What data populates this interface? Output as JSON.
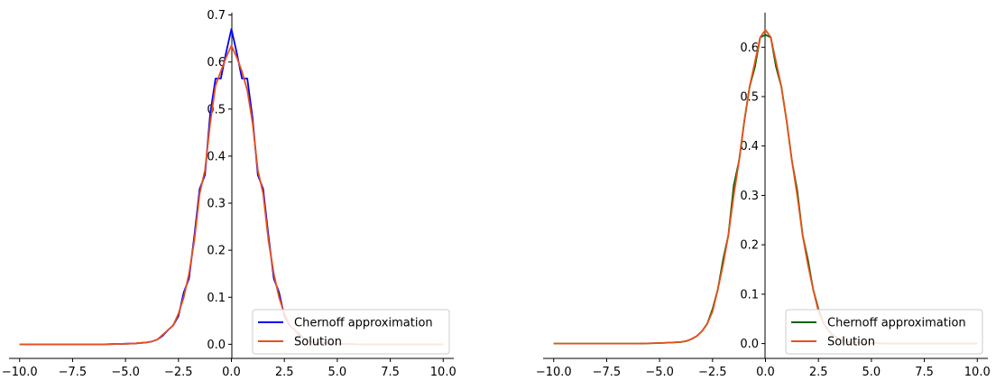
{
  "chart_data": [
    {
      "type": "line",
      "xlim": [
        -10.5,
        10.5
      ],
      "ylim": [
        -0.03,
        0.705
      ],
      "x_ticks": [
        -10,
        -7.5,
        -5,
        -2.5,
        0,
        2.5,
        5,
        7.5,
        10
      ],
      "x_tick_labels": [
        "−10.0",
        "−7.5",
        "−5.0",
        "−2.5",
        "0.0",
        "2.5",
        "5.0",
        "7.5",
        "10.0"
      ],
      "y_ticks": [
        0,
        0.1,
        0.2,
        0.3,
        0.4,
        0.5,
        0.6,
        0.7
      ],
      "y_tick_labels": [
        "0.0",
        "0.1",
        "0.2",
        "0.3",
        "0.4",
        "0.5",
        "0.6",
        "0.7"
      ],
      "legend_position": "lower-right",
      "grid": false,
      "series": [
        {
          "name": "Chernoff approximation",
          "color": "#0000ff",
          "x": [
            -10,
            -8,
            -6,
            -5,
            -4.5,
            -4,
            -3.75,
            -3.5,
            -3.25,
            -3,
            -2.75,
            -2.5,
            -2.25,
            -2,
            -1.75,
            -1.5,
            -1.25,
            -1,
            -0.75,
            -0.5,
            -0.25,
            0,
            0.25,
            0.5,
            0.75,
            1,
            1.25,
            1.5,
            1.75,
            2,
            2.25,
            2.5,
            2.75,
            3,
            3.25,
            3.5,
            3.75,
            4,
            4.5,
            5,
            6,
            8,
            10
          ],
          "y": [
            0,
            0,
            0,
            0.001,
            0.002,
            0.004,
            0.006,
            0.01,
            0.018,
            0.03,
            0.04,
            0.06,
            0.11,
            0.14,
            0.23,
            0.33,
            0.36,
            0.49,
            0.565,
            0.565,
            0.62,
            0.67,
            0.62,
            0.565,
            0.565,
            0.48,
            0.36,
            0.33,
            0.23,
            0.14,
            0.11,
            0.06,
            0.04,
            0.03,
            0.018,
            0.01,
            0.006,
            0.004,
            0.002,
            0.001,
            0,
            0,
            0
          ]
        },
        {
          "name": "Solution",
          "color": "#e8501a",
          "x": [
            -10,
            -8,
            -6,
            -5,
            -4.5,
            -4,
            -3.75,
            -3.5,
            -3.25,
            -3,
            -2.75,
            -2.5,
            -2.25,
            -2,
            -1.75,
            -1.5,
            -1.25,
            -1,
            -0.75,
            -0.5,
            -0.25,
            0,
            0.25,
            0.5,
            0.75,
            1,
            1.25,
            1.5,
            1.75,
            2,
            2.25,
            2.5,
            2.75,
            3,
            3.25,
            3.5,
            3.75,
            4,
            4.5,
            5,
            6,
            8,
            10
          ],
          "y": [
            0,
            0,
            0,
            0.001,
            0.002,
            0.004,
            0.006,
            0.01,
            0.02,
            0.03,
            0.04,
            0.065,
            0.1,
            0.15,
            0.22,
            0.32,
            0.37,
            0.47,
            0.55,
            0.58,
            0.61,
            0.635,
            0.61,
            0.58,
            0.54,
            0.47,
            0.37,
            0.32,
            0.22,
            0.15,
            0.1,
            0.065,
            0.04,
            0.03,
            0.02,
            0.01,
            0.006,
            0.004,
            0.002,
            0.001,
            0,
            0,
            0
          ]
        }
      ]
    },
    {
      "type": "line",
      "xlim": [
        -10.5,
        10.5
      ],
      "ylim": [
        -0.03,
        0.67
      ],
      "x_ticks": [
        -10,
        -7.5,
        -5,
        -2.5,
        0,
        2.5,
        5,
        7.5,
        10
      ],
      "x_tick_labels": [
        "−10.0",
        "−7.5",
        "−5.0",
        "−2.5",
        "0.0",
        "2.5",
        "5.0",
        "7.5",
        "10.0"
      ],
      "y_ticks": [
        0,
        0.1,
        0.2,
        0.3,
        0.4,
        0.5,
        0.6
      ],
      "y_tick_labels": [
        "0.0",
        "0.1",
        "0.2",
        "0.3",
        "0.4",
        "0.5",
        "0.6"
      ],
      "legend_position": "lower-right",
      "grid": false,
      "series": [
        {
          "name": "Chernoff approximation",
          "color": "#006400",
          "x": [
            -10,
            -8,
            -6,
            -5,
            -4.5,
            -4,
            -3.75,
            -3.5,
            -3.25,
            -3,
            -2.75,
            -2.5,
            -2.25,
            -2,
            -1.75,
            -1.5,
            -1.25,
            -1,
            -0.75,
            -0.5,
            -0.25,
            0,
            0.25,
            0.5,
            0.75,
            1,
            1.25,
            1.5,
            1.75,
            2,
            2.25,
            2.5,
            2.75,
            3,
            3.25,
            3.5,
            3.75,
            4,
            4.5,
            5,
            6,
            8,
            10
          ],
          "y": [
            0,
            0,
            0,
            0.001,
            0.002,
            0.003,
            0.005,
            0.009,
            0.015,
            0.025,
            0.04,
            0.07,
            0.11,
            0.17,
            0.22,
            0.32,
            0.37,
            0.45,
            0.52,
            0.56,
            0.62,
            0.625,
            0.62,
            0.56,
            0.52,
            0.45,
            0.37,
            0.31,
            0.22,
            0.17,
            0.11,
            0.07,
            0.04,
            0.025,
            0.015,
            0.009,
            0.005,
            0.003,
            0.002,
            0.001,
            0,
            0,
            0
          ]
        },
        {
          "name": "Solution",
          "color": "#e8501a",
          "x": [
            -10,
            -8,
            -6,
            -5,
            -4.5,
            -4,
            -3.75,
            -3.5,
            -3.25,
            -3,
            -2.75,
            -2.5,
            -2.25,
            -2,
            -1.75,
            -1.5,
            -1.25,
            -1,
            -0.75,
            -0.5,
            -0.25,
            0,
            0.25,
            0.5,
            0.75,
            1,
            1.25,
            1.5,
            1.75,
            2,
            2.25,
            2.5,
            2.75,
            3,
            3.25,
            3.5,
            3.75,
            4,
            4.5,
            5,
            6,
            8,
            10
          ],
          "y": [
            0,
            0,
            0,
            0.001,
            0.002,
            0.003,
            0.005,
            0.009,
            0.015,
            0.025,
            0.04,
            0.065,
            0.11,
            0.16,
            0.22,
            0.3,
            0.37,
            0.45,
            0.52,
            0.57,
            0.62,
            0.635,
            0.62,
            0.57,
            0.52,
            0.45,
            0.37,
            0.3,
            0.22,
            0.16,
            0.11,
            0.065,
            0.04,
            0.025,
            0.015,
            0.009,
            0.005,
            0.003,
            0.002,
            0.001,
            0,
            0,
            0
          ]
        }
      ]
    }
  ]
}
